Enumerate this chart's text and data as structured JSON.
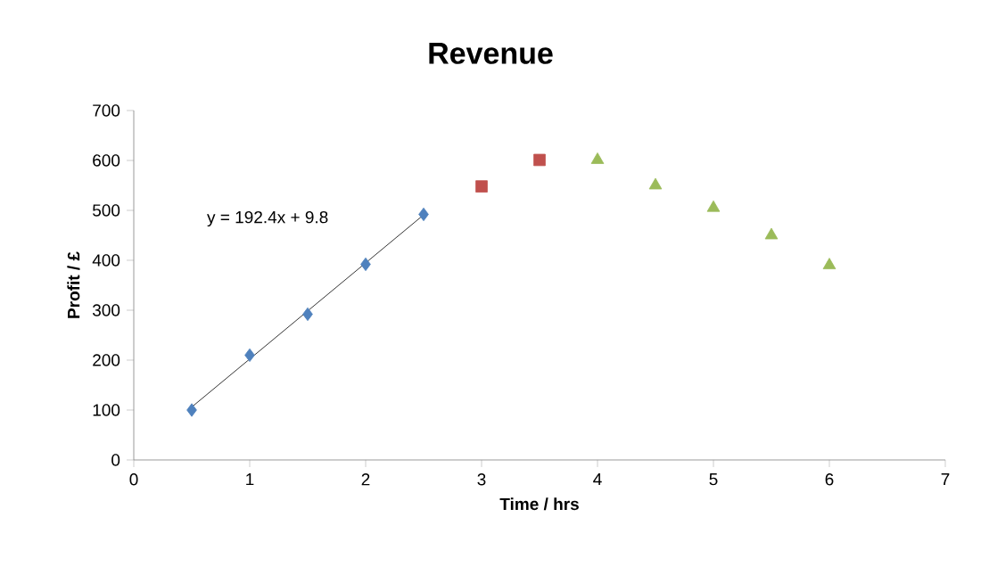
{
  "chart_data": {
    "type": "scatter",
    "title": "Revenue",
    "xlabel": "Time / hrs",
    "ylabel": "Profit / £",
    "xlim": [
      0,
      7
    ],
    "xticks": [
      0,
      1,
      2,
      3,
      4,
      5,
      6,
      7
    ],
    "ylim": [
      0,
      700
    ],
    "yticks": [
      0,
      100,
      200,
      300,
      400,
      500,
      600,
      700
    ],
    "series": [
      {
        "marker": "diamond",
        "color": "#4f81bd",
        "x": [
          0.5,
          1,
          1.5,
          2,
          2.5
        ],
        "values": [
          100,
          210,
          292,
          392,
          492
        ]
      },
      {
        "marker": "square",
        "color": "#c0504d",
        "x": [
          3,
          3.5
        ],
        "values": [
          548,
          601
        ]
      },
      {
        "marker": "triangle",
        "color": "#9bbb59",
        "x": [
          4,
          4.5,
          5,
          5.5,
          6
        ],
        "values": [
          601,
          550,
          505,
          450,
          390
        ]
      },
      {
        "type": "line",
        "marker": "none",
        "color": "#000000",
        "x": [
          0.5,
          2.5
        ],
        "values": [
          106,
          491
        ]
      }
    ],
    "annotations": [
      "y = 192.4x  + 9.8"
    ]
  }
}
